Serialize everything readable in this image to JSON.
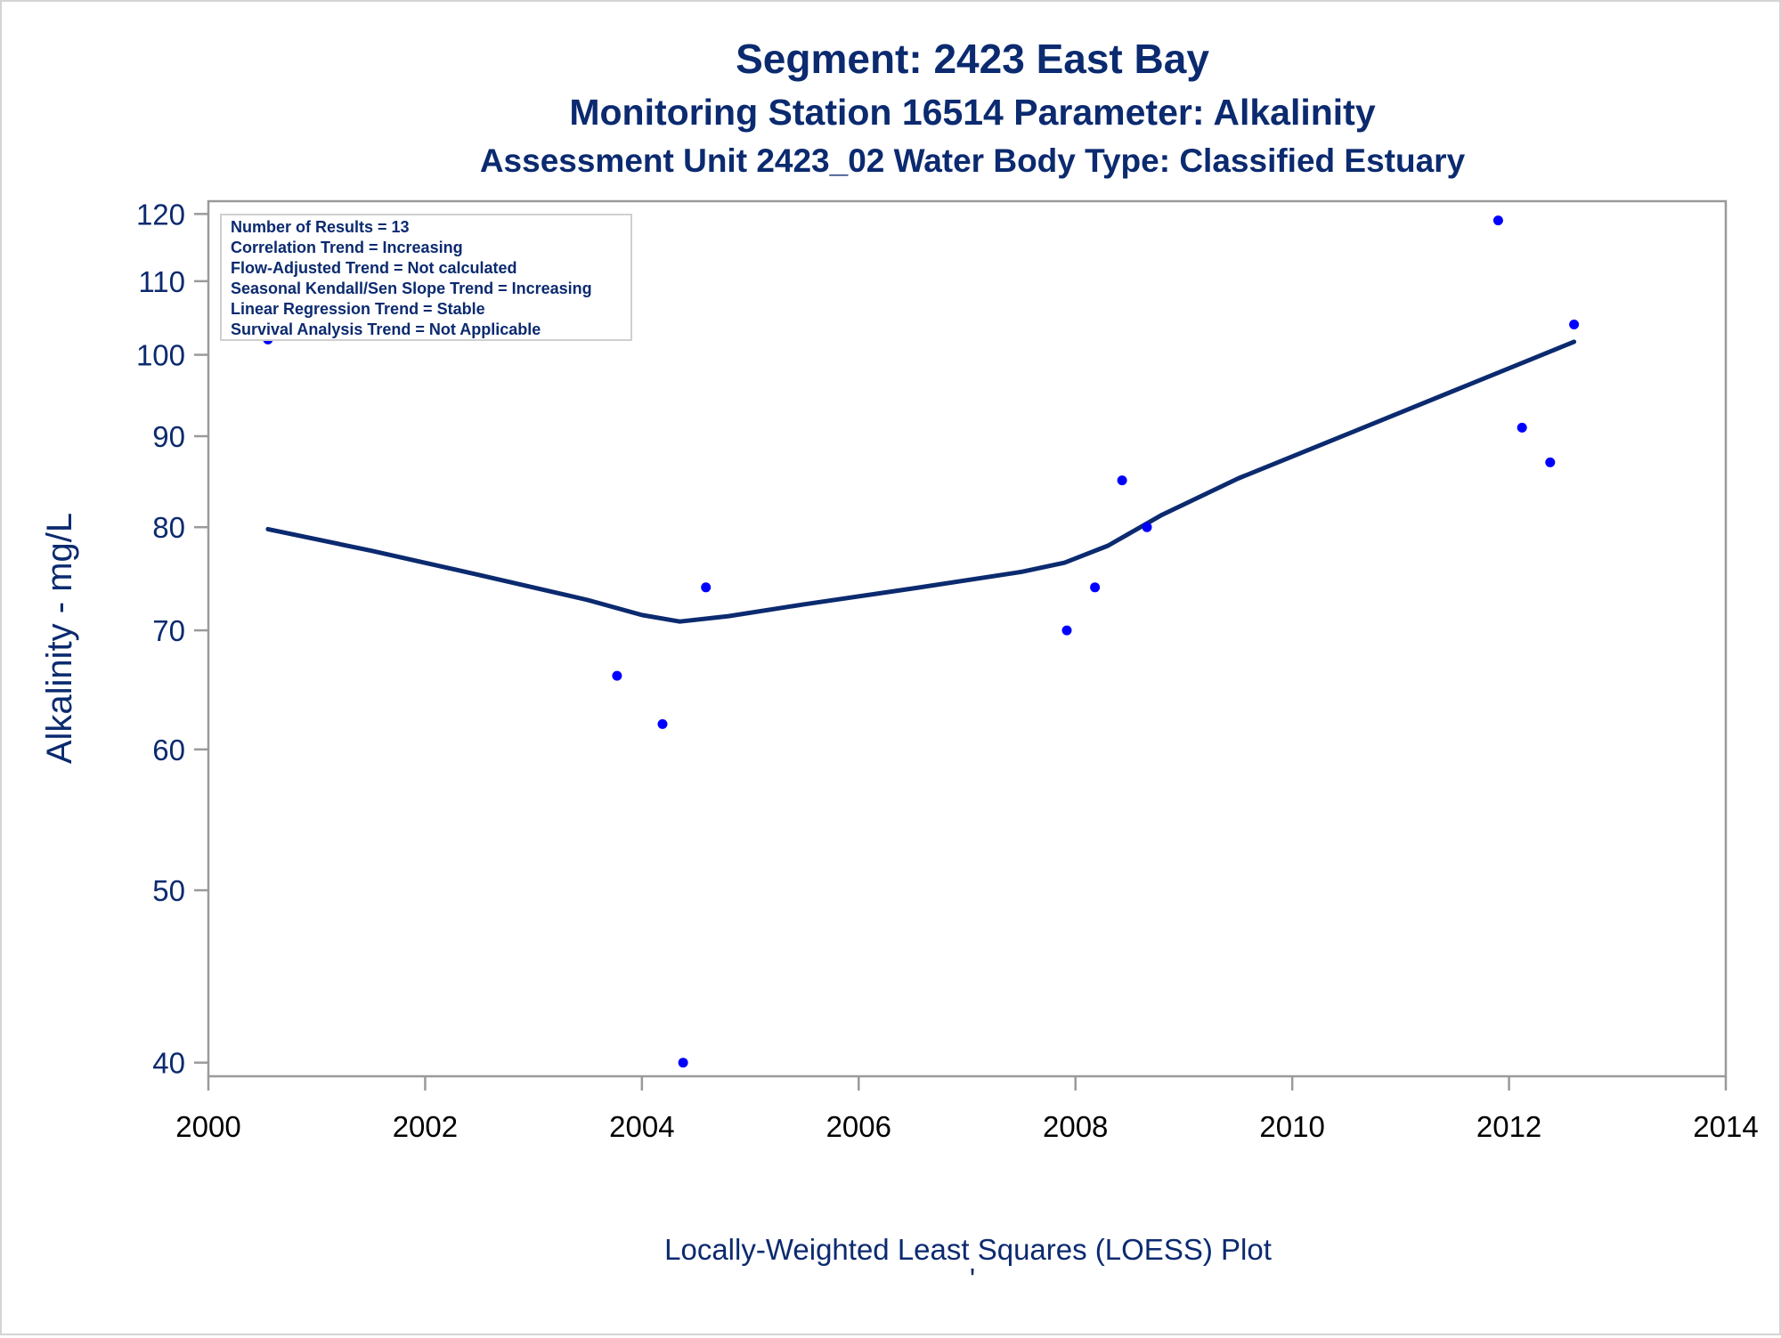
{
  "titles": {
    "line1": "Segment: 2423  East Bay",
    "line2": "Monitoring Station 16514 Parameter: Alkalinity",
    "line3": "Assessment Unit 2423_02   Water Body Type: Classified Estuary"
  },
  "stats_box": [
    "Number of Results = 13",
    "Correlation Trend = Increasing",
    "Flow-Adjusted Trend = Not calculated",
    "Seasonal Kendall/Sen Slope Trend = Increasing",
    "Linear Regression Trend = Stable",
    "Survival Analysis Trend = Not Applicable"
  ],
  "footnote": "Locally-Weighted Least Squares (LOESS) Plot",
  "footnote_mark": "'",
  "colors": {
    "text": "#0b2a6f",
    "points": "#0000ff",
    "loess_line": "#0b2a6f",
    "axis": "#9a9a9a"
  },
  "chart_data": {
    "type": "scatter",
    "ylabel": "Alkalinity - mg/L",
    "xlabel": "",
    "y_scale": "log",
    "xlim": [
      2000,
      2014
    ],
    "ylim": [
      39.3,
      122
    ],
    "x_ticks": [
      "2000",
      "2002",
      "2004",
      "2006",
      "2008",
      "2010",
      "2012",
      "2014"
    ],
    "y_ticks": [
      "40",
      "50",
      "60",
      "70",
      "80",
      "90",
      "100",
      "110",
      "120"
    ],
    "grid": false,
    "legend": "top-left",
    "series": [
      {
        "type": "scatter",
        "x": [
          2000.55,
          2003.77,
          2004.19,
          2004.38,
          2004.59,
          2007.92,
          2008.18,
          2008.43,
          2008.66,
          2011.9,
          2012.12,
          2012.38,
          2012.6
        ],
        "y": [
          102,
          66,
          62,
          40,
          74,
          70,
          74,
          85,
          80,
          119,
          91,
          87,
          104
        ]
      },
      {
        "type": "line",
        "x": [
          2000.55,
          2001.5,
          2002.5,
          2003.5,
          2004.0,
          2004.35,
          2004.8,
          2005.5,
          2006.5,
          2007.5,
          2007.9,
          2008.3,
          2008.8,
          2009.5,
          2010.5,
          2011.5,
          2012.2,
          2012.6
        ],
        "y": [
          79.8,
          77.6,
          75.2,
          72.8,
          71.4,
          70.8,
          71.3,
          72.4,
          73.9,
          75.5,
          76.4,
          78.1,
          81.3,
          85.2,
          90.2,
          95.5,
          99.4,
          101.7
        ]
      }
    ]
  }
}
